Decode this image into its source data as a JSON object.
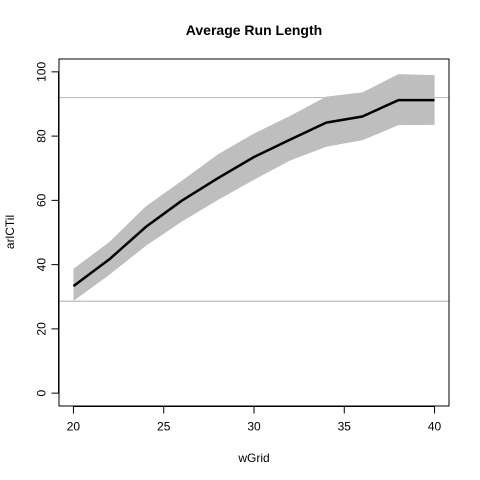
{
  "chart_data": {
    "type": "line",
    "title": "Average Run Length",
    "xlabel": "wGrid",
    "ylabel": "arlCTil",
    "xlim": [
      19.2,
      40.8
    ],
    "ylim": [
      -4,
      104
    ],
    "x_ticks": [
      20,
      25,
      30,
      35,
      40
    ],
    "y_ticks": [
      0,
      20,
      40,
      60,
      80,
      100
    ],
    "grid": false,
    "series": [
      {
        "x": [
          20,
          22,
          24,
          26,
          28,
          30,
          32,
          34,
          36,
          38,
          40
        ],
        "values": [
          33.3,
          41.7,
          51.7,
          59.9,
          66.9,
          73.5,
          78.9,
          84.2,
          86.1,
          91.2,
          91.2
        ],
        "color": "#000000"
      }
    ],
    "band": {
      "x": [
        20,
        22,
        24,
        26,
        28,
        30,
        32,
        34,
        36,
        38,
        40
      ],
      "upper": [
        38.7,
        47.1,
        58.1,
        66.1,
        74.3,
        80.8,
        86.3,
        92.3,
        93.6,
        99.3,
        99.0
      ],
      "lower": [
        28.7,
        36.9,
        45.8,
        53.4,
        60.1,
        66.4,
        72.4,
        76.7,
        78.7,
        83.4,
        83.5
      ],
      "color": "#bebebe"
    },
    "hlines": [
      {
        "y": 92.0,
        "color": "#bebebe"
      },
      {
        "y": 28.6,
        "color": "#bebebe"
      }
    ]
  }
}
